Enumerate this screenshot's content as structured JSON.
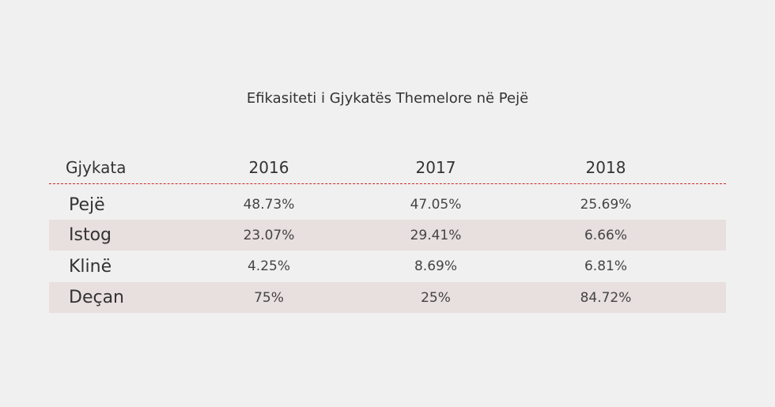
{
  "title": "Efikasiteti i Gjykatës Themelore në Pejë",
  "table": {
    "header": [
      "Gjykata",
      "2016",
      "2017",
      "2018"
    ],
    "rows": [
      [
        "Pejë",
        "48.73%",
        "47.05%",
        "25.69%"
      ],
      [
        "Istog",
        "23.07%",
        "29.41%",
        "6.66%"
      ],
      [
        "Klinë",
        "4.25%",
        "8.69%",
        "6.81%"
      ],
      [
        "Deçan",
        "75%",
        "25%",
        "84.72%"
      ]
    ]
  }
}
